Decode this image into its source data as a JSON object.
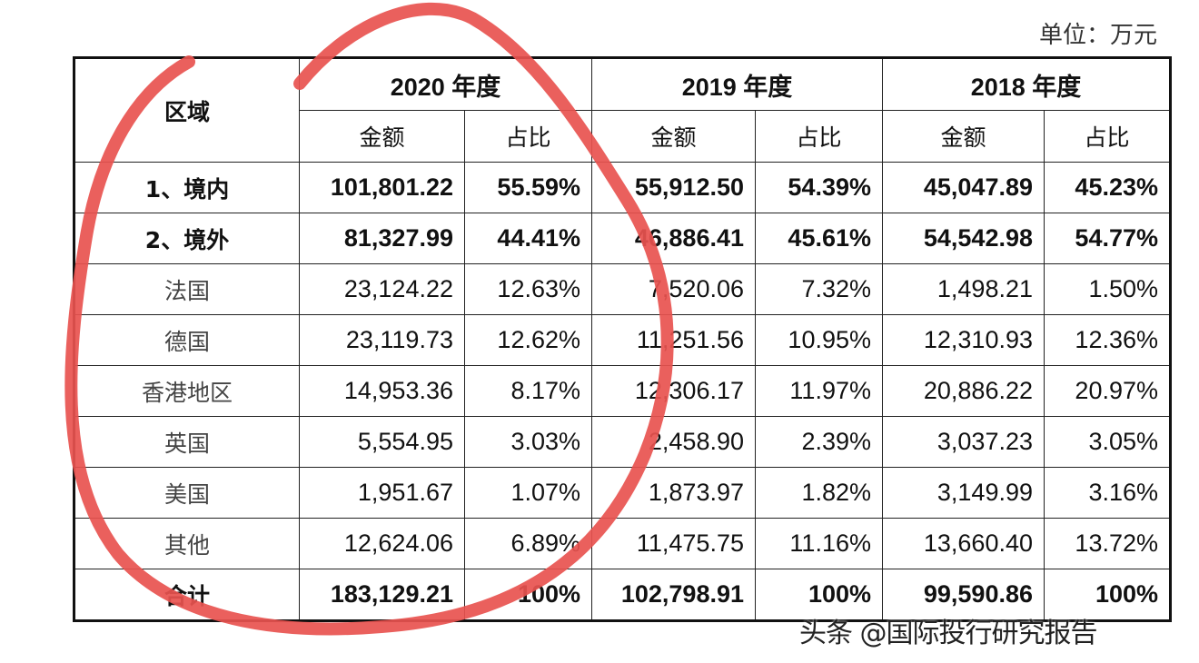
{
  "unit": "单位：万元",
  "header": {
    "region": "区域",
    "years": [
      "2020 年度",
      "2019 年度",
      "2018 年度"
    ],
    "amount": "金额",
    "ratio": "占比"
  },
  "rows": [
    {
      "region": "1、境内",
      "bold": true,
      "v": [
        "101,801.22",
        "55.59%",
        "55,912.50",
        "54.39%",
        "45,047.89",
        "45.23%"
      ]
    },
    {
      "region": "2、境外",
      "bold": true,
      "v": [
        "81,327.99",
        "44.41%",
        "46,886.41",
        "45.61%",
        "54,542.98",
        "54.77%"
      ]
    },
    {
      "region": "法国",
      "bold": false,
      "v": [
        "23,124.22",
        "12.63%",
        "7,520.06",
        "7.32%",
        "1,498.21",
        "1.50%"
      ]
    },
    {
      "region": "德国",
      "bold": false,
      "v": [
        "23,119.73",
        "12.62%",
        "11,251.56",
        "10.95%",
        "12,310.93",
        "12.36%"
      ]
    },
    {
      "region": "香港地区",
      "bold": false,
      "v": [
        "14,953.36",
        "8.17%",
        "12,306.17",
        "11.97%",
        "20,886.22",
        "20.97%"
      ]
    },
    {
      "region": "英国",
      "bold": false,
      "v": [
        "5,554.95",
        "3.03%",
        "2,458.90",
        "2.39%",
        "3,037.23",
        "3.05%"
      ]
    },
    {
      "region": "美国",
      "bold": false,
      "v": [
        "1,951.67",
        "1.07%",
        "1,873.97",
        "1.82%",
        "3,149.99",
        "3.16%"
      ]
    },
    {
      "region": "其他",
      "bold": false,
      "v": [
        "12,624.06",
        "6.89%",
        "11,475.75",
        "11.16%",
        "13,660.40",
        "13.72%"
      ]
    },
    {
      "region": "合计",
      "bold": true,
      "v": [
        "183,129.21",
        "100%",
        "102,798.91",
        "100%",
        "99,590.86",
        "100%"
      ]
    }
  ],
  "watermark": "头条 @国际投行研究报告",
  "colors": {
    "annotation": "#e8524f"
  }
}
